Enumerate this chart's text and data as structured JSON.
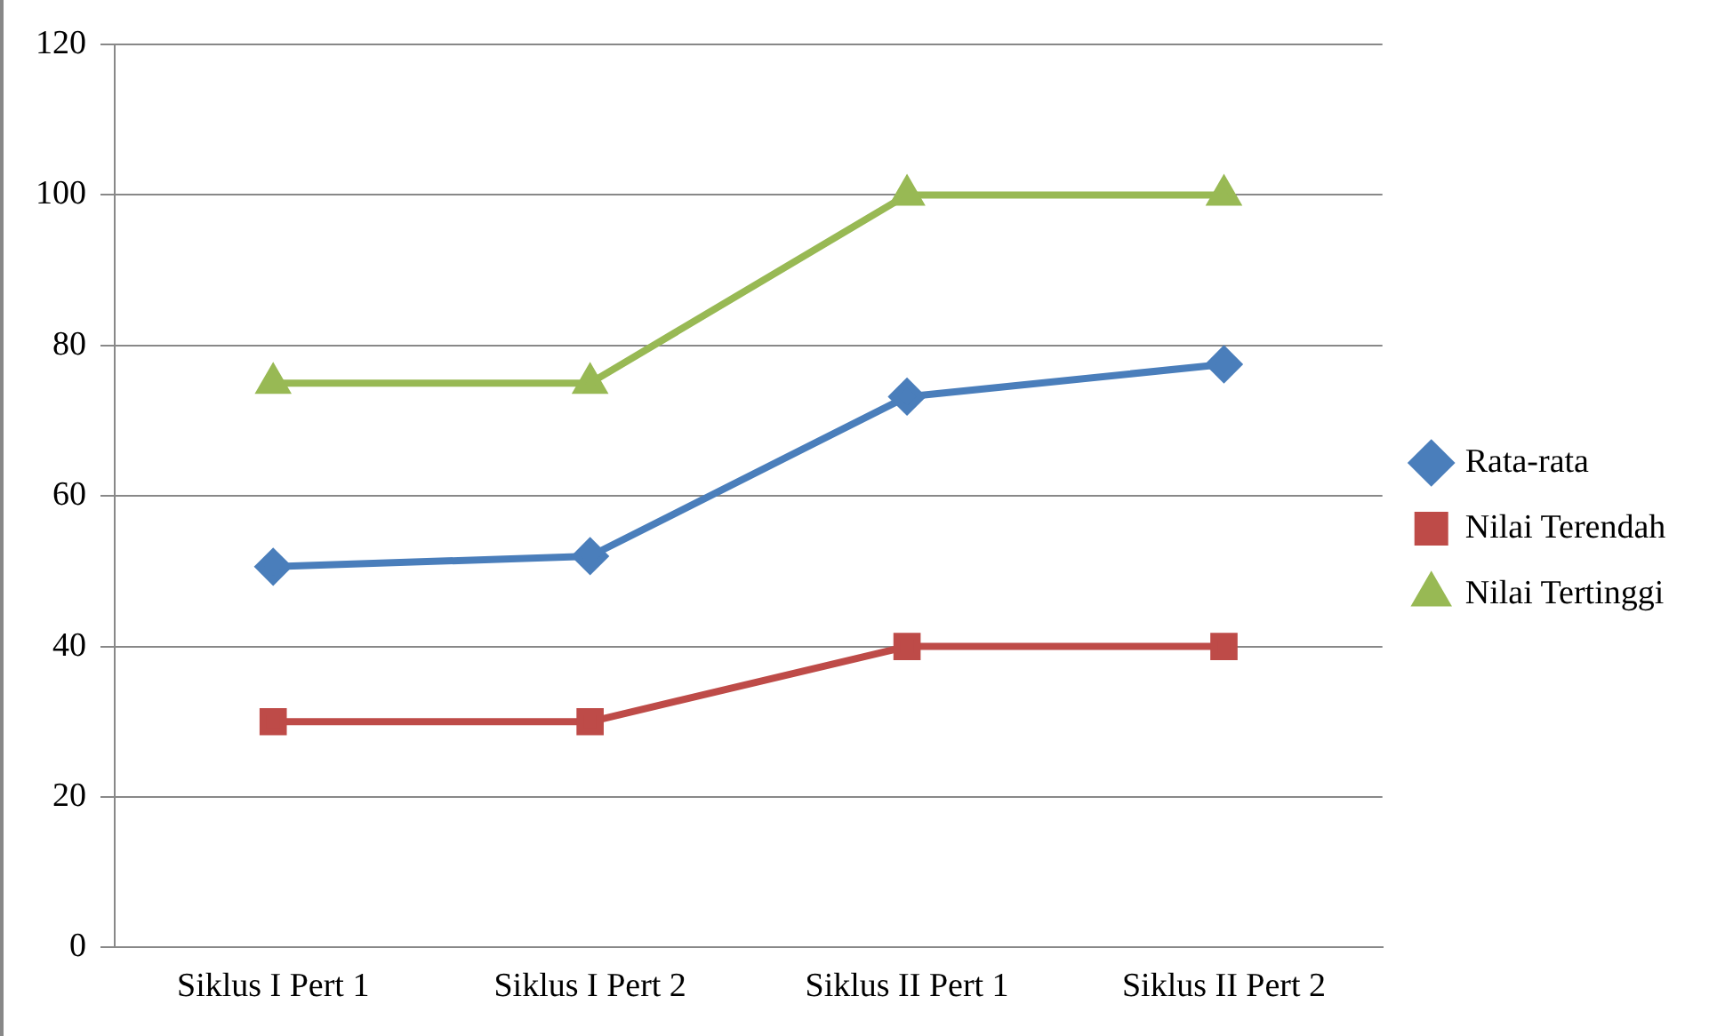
{
  "chart_data": {
    "type": "line",
    "categories": [
      "Siklus I Pert 1",
      "Siklus I Pert 2",
      "Siklus II Pert 1",
      "Siklus II Pert 2"
    ],
    "series": [
      {
        "name": "Rata-rata",
        "color": "#4a7ebb",
        "marker": "diamond",
        "values": [
          50.6,
          52.0,
          73.2,
          77.5
        ]
      },
      {
        "name": "Nilai Terendah",
        "color": "#be4b48",
        "marker": "square",
        "values": [
          30,
          30,
          40,
          40
        ]
      },
      {
        "name": "Nilai Tertinggi",
        "color": "#98b954",
        "marker": "triangle",
        "values": [
          75,
          75,
          100,
          100
        ]
      }
    ],
    "ylim": [
      0,
      120
    ],
    "yticks": [
      0,
      20,
      40,
      60,
      80,
      100,
      120
    ],
    "grid": "y",
    "legend": "right"
  }
}
